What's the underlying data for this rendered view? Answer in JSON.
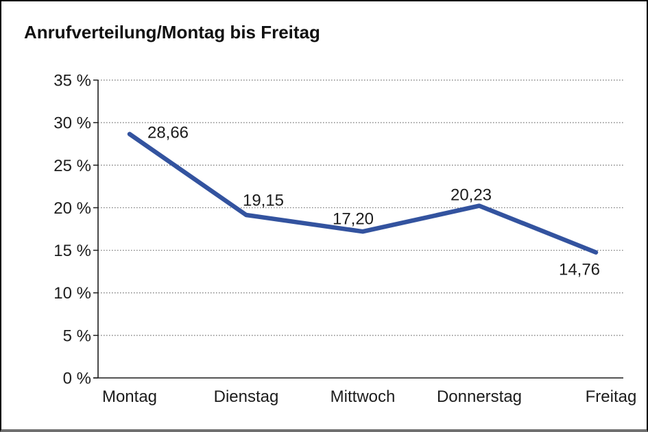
{
  "window": {
    "background_color": "#ffffff",
    "border_color": "#000000",
    "bottom_edge_color": "#6f6f6f"
  },
  "chart_data": {
    "type": "line",
    "title": "Anrufverteilung/Montag bis Freitag",
    "categories": [
      "Montag",
      "Dienstag",
      "Mittwoch",
      "Donnerstag",
      "Freitag"
    ],
    "series": [
      {
        "name": "Anrufverteilung",
        "values": [
          28.66,
          19.15,
          17.2,
          20.23,
          14.76
        ],
        "value_labels": [
          "28,66",
          "19,15",
          "17,20",
          "20,23",
          "14,76"
        ],
        "color": "#33539F"
      }
    ],
    "xlabel": "",
    "ylabel": "",
    "ylim": [
      0,
      35
    ],
    "ytick_step": 5,
    "ytick_labels": [
      "0 %",
      "5 %",
      "10 %",
      "15 %",
      "20 %",
      "25 %",
      "30 %",
      "35 %"
    ],
    "grid": "horizontal-dotted",
    "gridline_color": "#777777",
    "axis_color": "#1c1c1c",
    "text_color": "#1c1c1c",
    "legend": "none"
  }
}
